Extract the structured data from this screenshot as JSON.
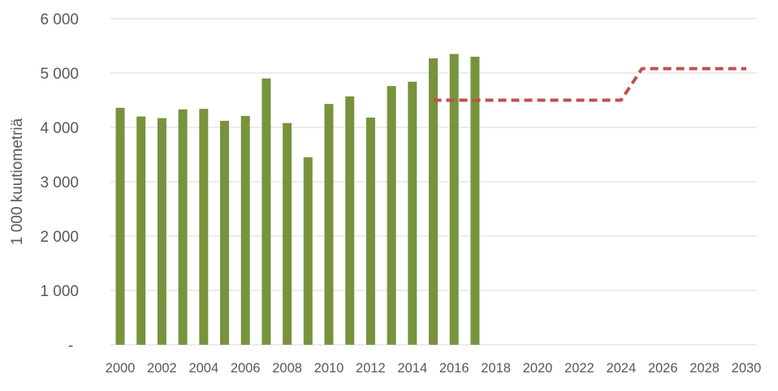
{
  "chart_data": {
    "type": "bar",
    "ylabel": "1 000 kuutiometriä",
    "xlabel": "",
    "title": "",
    "ylim": [
      0,
      6000
    ],
    "yticks": [
      {
        "value": 0,
        "label": "-"
      },
      {
        "value": 1000,
        "label": "1 000"
      },
      {
        "value": 2000,
        "label": "2 000"
      },
      {
        "value": 3000,
        "label": "3 000"
      },
      {
        "value": 4000,
        "label": "4 000"
      },
      {
        "value": 5000,
        "label": "5 000"
      },
      {
        "value": 6000,
        "label": "6 000"
      }
    ],
    "xlim": [
      2000,
      2030
    ],
    "xtick_labels": [
      "2000",
      "2002",
      "2004",
      "2006",
      "2008",
      "2010",
      "2012",
      "2014",
      "2016",
      "2018",
      "2020",
      "2022",
      "2024",
      "2026",
      "2028",
      "2030"
    ],
    "grid": true,
    "bars": {
      "color": "#77933c",
      "x": [
        2000,
        2001,
        2002,
        2003,
        2004,
        2005,
        2006,
        2007,
        2008,
        2009,
        2010,
        2011,
        2012,
        2013,
        2014,
        2015,
        2016,
        2017
      ],
      "values": [
        4360,
        4200,
        4170,
        4330,
        4340,
        4120,
        4210,
        4900,
        4080,
        3450,
        4430,
        4570,
        4180,
        4760,
        4840,
        5270,
        5350,
        5300
      ]
    },
    "line": {
      "style": "dashed",
      "color": "#c0504d",
      "x": [
        2015,
        2016,
        2017,
        2018,
        2019,
        2020,
        2021,
        2022,
        2023,
        2024,
        2025,
        2026,
        2027,
        2028,
        2029,
        2030
      ],
      "values": [
        4500,
        4500,
        4500,
        4500,
        4500,
        4500,
        4500,
        4500,
        4500,
        4500,
        5080,
        5080,
        5080,
        5080,
        5080,
        5080
      ]
    }
  }
}
